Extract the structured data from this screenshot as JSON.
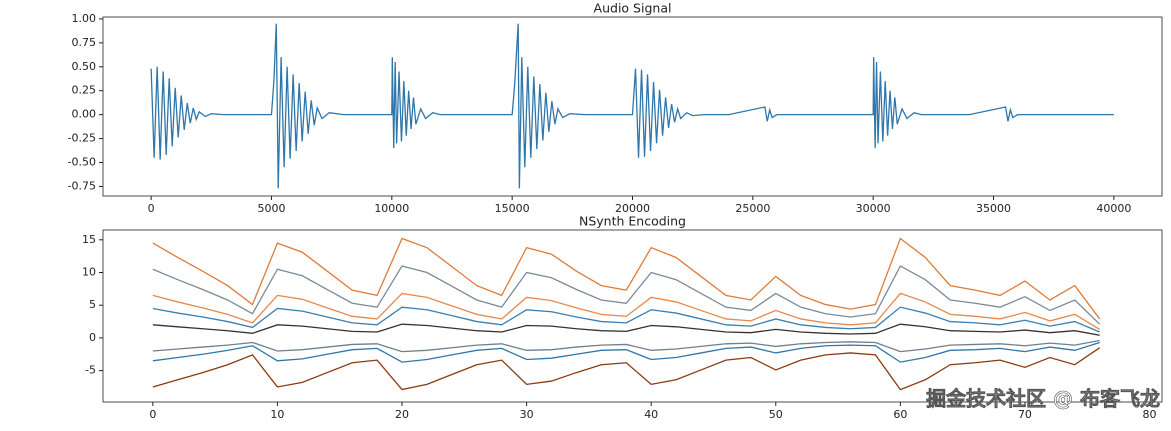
{
  "chart_data": [
    {
      "type": "line",
      "title": "Audio Signal",
      "x": [
        0,
        125,
        250,
        375,
        500,
        625,
        750,
        875,
        1000,
        1125,
        1250,
        1375,
        1500,
        1625,
        1750,
        1875,
        2000,
        2250,
        2500,
        3000,
        4000,
        5000,
        5100,
        5200,
        5280,
        5400,
        5525,
        5650,
        5775,
        5900,
        6025,
        6150,
        6275,
        6400,
        6525,
        6650,
        6775,
        6900,
        7100,
        7400,
        8000,
        9000,
        10000,
        10020,
        10080,
        10140,
        10200,
        10300,
        10400,
        10500,
        10600,
        10700,
        10800,
        10900,
        11000,
        11200,
        11400,
        11700,
        12000,
        13000,
        14000,
        15000,
        15100,
        15250,
        15300,
        15400,
        15525,
        15650,
        15775,
        15900,
        16025,
        16150,
        16275,
        16400,
        16525,
        16650,
        16775,
        16900,
        17100,
        17400,
        18000,
        19000,
        20000,
        20125,
        20250,
        20375,
        20500,
        20625,
        20750,
        20875,
        21000,
        21125,
        21250,
        21375,
        21500,
        21625,
        21750,
        21875,
        22000,
        22250,
        22500,
        23000,
        24000,
        25500,
        25600,
        25700,
        25800,
        26000,
        27000,
        28000,
        29000,
        30000,
        30020,
        30080,
        30140,
        30200,
        30300,
        30400,
        30500,
        30600,
        30700,
        30800,
        30900,
        31000,
        31200,
        31400,
        31700,
        32000,
        33000,
        34000,
        35500,
        35600,
        35700,
        35800,
        36000,
        37000,
        38000,
        39000,
        40000
      ],
      "series": [
        {
          "color": "#2f77aa",
          "values": [
            0.48,
            -0.45,
            0.5,
            -0.47,
            0.45,
            -0.42,
            0.38,
            -0.33,
            0.28,
            -0.24,
            0.2,
            -0.16,
            0.12,
            -0.09,
            0.07,
            -0.05,
            0.03,
            -0.02,
            0.01,
            0,
            0,
            0,
            0.35,
            0.95,
            -0.77,
            0.6,
            -0.55,
            0.5,
            -0.46,
            0.42,
            -0.38,
            0.33,
            -0.28,
            0.24,
            -0.2,
            0.15,
            -0.11,
            0.07,
            -0.04,
            0.02,
            0,
            0,
            0,
            0.6,
            -0.35,
            0.55,
            -0.3,
            0.45,
            -0.28,
            0.35,
            -0.22,
            0.25,
            -0.15,
            0.18,
            -0.1,
            0.06,
            -0.04,
            0.02,
            0,
            0,
            0,
            0,
            0.3,
            0.95,
            -0.77,
            0.6,
            -0.55,
            0.5,
            -0.45,
            0.4,
            -0.36,
            0.32,
            -0.27,
            0.23,
            -0.18,
            0.14,
            -0.1,
            0.06,
            -0.03,
            0.01,
            0,
            0,
            0,
            0.48,
            -0.45,
            0.47,
            -0.44,
            0.42,
            -0.38,
            0.34,
            -0.3,
            0.26,
            -0.22,
            0.18,
            -0.14,
            0.11,
            -0.08,
            0.06,
            -0.04,
            0.02,
            -0.01,
            0,
            0,
            0.08,
            -0.07,
            0.05,
            -0.03,
            0,
            0,
            0,
            0,
            0,
            0.6,
            -0.35,
            0.55,
            -0.3,
            0.45,
            -0.28,
            0.35,
            -0.22,
            0.25,
            -0.15,
            0.18,
            -0.1,
            0.06,
            -0.04,
            0.02,
            0,
            0,
            0,
            0.08,
            -0.07,
            0.05,
            -0.03,
            0,
            0,
            0,
            0,
            0
          ]
        }
      ],
      "xlim": [
        -2000,
        42000
      ],
      "xticks": [
        0,
        5000,
        10000,
        15000,
        20000,
        25000,
        30000,
        35000,
        40000
      ],
      "ylim": [
        -0.85,
        1.02
      ],
      "yticks": [
        {
          "value": -0.75,
          "label": "-0.75"
        },
        {
          "value": -0.5,
          "label": "-0.50"
        },
        {
          "value": -0.25,
          "label": "-0.25"
        },
        {
          "value": 0,
          "label": "0.00"
        },
        {
          "value": 0.25,
          "label": "0.25"
        },
        {
          "value": 0.5,
          "label": "0.50"
        },
        {
          "value": 0.75,
          "label": "0.75"
        },
        {
          "value": 1,
          "label": "1.00"
        }
      ]
    },
    {
      "type": "line",
      "title": "NSynth Encoding",
      "x": [
        0,
        2,
        4,
        6,
        8,
        10,
        12,
        14,
        16,
        18,
        20,
        22,
        24,
        26,
        28,
        30,
        32,
        34,
        36,
        38,
        40,
        42,
        44,
        46,
        48,
        50,
        52,
        54,
        56,
        58,
        60,
        62,
        64,
        66,
        68,
        70,
        72,
        74,
        76
      ],
      "series": [
        {
          "color": "#e07b39",
          "values": [
            14.5,
            12.3,
            10.2,
            8.0,
            5.1,
            14.5,
            13.1,
            10.2,
            7.3,
            6.5,
            15.2,
            13.8,
            10.9,
            8.0,
            6.5,
            13.8,
            12.8,
            10.2,
            8.0,
            7.3,
            13.8,
            12.3,
            9.4,
            6.5,
            5.8,
            9.4,
            6.5,
            5.1,
            4.4,
            5.1,
            15.2,
            12.3,
            8.0,
            7.3,
            6.5,
            8.7,
            5.8,
            8.0,
            2.9
          ]
        },
        {
          "color": "#7a8a99",
          "values": [
            10.5,
            8.9,
            7.4,
            5.8,
            3.7,
            10.5,
            9.5,
            7.4,
            5.3,
            4.7,
            11.0,
            10.0,
            7.9,
            5.8,
            4.7,
            10.0,
            9.2,
            7.4,
            5.8,
            5.3,
            10.0,
            8.9,
            6.8,
            4.7,
            4.2,
            6.8,
            4.7,
            3.7,
            3.2,
            3.7,
            11.0,
            8.9,
            5.8,
            5.3,
            4.7,
            6.3,
            4.2,
            5.8,
            2.1
          ]
        },
        {
          "color": "#e8884a",
          "values": [
            6.5,
            5.5,
            4.6,
            3.6,
            2.3,
            6.5,
            5.9,
            4.6,
            3.3,
            2.9,
            6.8,
            6.2,
            4.9,
            3.6,
            2.9,
            6.2,
            5.7,
            4.6,
            3.6,
            3.3,
            6.2,
            5.5,
            4.2,
            2.9,
            2.6,
            4.2,
            2.9,
            2.3,
            2.0,
            2.3,
            6.8,
            5.5,
            3.6,
            3.3,
            2.9,
            3.9,
            2.6,
            3.6,
            1.3
          ]
        },
        {
          "color": "#3a7fb0",
          "values": [
            4.5,
            3.8,
            3.2,
            2.5,
            1.6,
            4.5,
            4.1,
            3.2,
            2.3,
            2.0,
            4.7,
            4.3,
            3.4,
            2.5,
            2.0,
            4.3,
            4.0,
            3.2,
            2.5,
            2.3,
            4.3,
            3.8,
            2.9,
            2.0,
            1.8,
            2.9,
            2.0,
            1.6,
            1.4,
            1.6,
            4.7,
            3.8,
            2.5,
            2.3,
            2.0,
            2.7,
            1.8,
            2.5,
            0.9
          ]
        },
        {
          "color": "#333333",
          "values": [
            2.0,
            1.7,
            1.4,
            1.1,
            0.7,
            2.0,
            1.8,
            1.4,
            1.0,
            0.9,
            2.1,
            1.9,
            1.5,
            1.1,
            0.9,
            1.9,
            1.8,
            1.4,
            1.1,
            1.0,
            1.9,
            1.7,
            1.3,
            0.9,
            0.8,
            1.3,
            0.9,
            0.7,
            0.6,
            0.7,
            2.1,
            1.7,
            1.1,
            1.0,
            0.9,
            1.2,
            0.8,
            1.1,
            0.4
          ]
        },
        {
          "color": "#6f7f8f",
          "values": [
            -2.0,
            -1.7,
            -1.4,
            -1.1,
            -0.7,
            -2.0,
            -1.8,
            -1.4,
            -1.0,
            -0.9,
            -2.1,
            -1.9,
            -1.5,
            -1.1,
            -0.9,
            -1.9,
            -1.8,
            -1.4,
            -1.1,
            -1.0,
            -1.9,
            -1.7,
            -1.3,
            -0.9,
            -0.8,
            -1.3,
            -0.9,
            -0.7,
            -0.6,
            -0.7,
            -2.1,
            -1.7,
            -1.1,
            -1.0,
            -0.9,
            -1.2,
            -0.8,
            -1.1,
            -0.4
          ]
        },
        {
          "color": "#2f77aa",
          "values": [
            -3.5,
            -3.0,
            -2.5,
            -1.9,
            -1.2,
            -3.5,
            -3.2,
            -2.5,
            -1.8,
            -1.6,
            -3.7,
            -3.3,
            -2.6,
            -1.9,
            -1.6,
            -3.3,
            -3.1,
            -2.5,
            -1.9,
            -1.8,
            -3.3,
            -3.0,
            -2.3,
            -1.6,
            -1.4,
            -2.3,
            -1.6,
            -1.2,
            -1.1,
            -1.2,
            -3.7,
            -3.0,
            -1.9,
            -1.8,
            -1.6,
            -2.1,
            -1.4,
            -1.9,
            -0.7
          ]
        },
        {
          "color": "#8b3a10",
          "values": [
            -7.5,
            -6.4,
            -5.3,
            -4.1,
            -2.6,
            -7.5,
            -6.8,
            -5.3,
            -3.8,
            -3.4,
            -7.9,
            -7.1,
            -5.6,
            -4.1,
            -3.4,
            -7.1,
            -6.6,
            -5.3,
            -4.1,
            -3.8,
            -7.1,
            -6.4,
            -4.9,
            -3.4,
            -3.0,
            -4.9,
            -3.4,
            -2.6,
            -2.3,
            -2.6,
            -7.9,
            -6.4,
            -4.1,
            -3.8,
            -3.4,
            -4.5,
            -3.0,
            -4.1,
            -1.5
          ]
        }
      ],
      "xlim": [
        -4,
        81
      ],
      "xticks": [
        0,
        10,
        20,
        30,
        40,
        50,
        60,
        70,
        80
      ],
      "ylim": [
        -9.8,
        16.5
      ],
      "yticks": [
        -5,
        0,
        5,
        10,
        15
      ]
    }
  ],
  "watermark": "掘金技术社区 @ 布客飞龙"
}
